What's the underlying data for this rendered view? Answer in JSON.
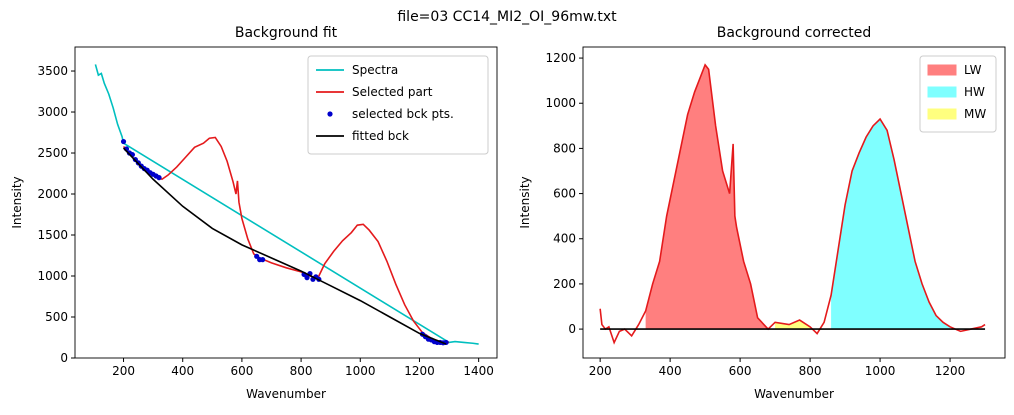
{
  "suptitle": "file=03 CC14_MI2_OI_96mw.txt",
  "chart_data": [
    {
      "type": "line",
      "title": "Background fit",
      "x_label": "Wavenumber",
      "y_label": "Intensity",
      "xlim": [
        36,
        1462
      ],
      "ylim": [
        0,
        3793
      ],
      "xticks": [
        200,
        400,
        600,
        800,
        1000,
        1200,
        1400
      ],
      "yticks": [
        0,
        500,
        1000,
        1500,
        2000,
        2500,
        3000,
        3500
      ],
      "legend": "upper right",
      "series": [
        {
          "name": "Spectra",
          "kind": "line",
          "color": "#00bfbf",
          "x": [
            105,
            115,
            125,
            135,
            150,
            165,
            180,
            195,
            200,
            1300,
            1320,
            1350,
            1380,
            1400
          ],
          "values": [
            3580,
            3450,
            3470,
            3350,
            3220,
            3050,
            2850,
            2700,
            2620,
            190,
            200,
            190,
            180,
            170
          ]
        },
        {
          "name": "Selected part",
          "kind": "line",
          "color": "#e41a1c",
          "x": [
            200,
            230,
            260,
            300,
            330,
            350,
            380,
            410,
            440,
            470,
            490,
            510,
            530,
            550,
            570,
            580,
            585,
            590,
            600,
            620,
            640,
            660,
            700,
            750,
            800,
            830,
            850,
            860,
            880,
            910,
            940,
            970,
            990,
            1010,
            1030,
            1060,
            1090,
            1120,
            1150,
            1180,
            1210,
            1240,
            1270,
            1300
          ],
          "values": [
            2580,
            2450,
            2330,
            2230,
            2180,
            2230,
            2330,
            2450,
            2570,
            2620,
            2680,
            2690,
            2580,
            2400,
            2150,
            2000,
            2160,
            1900,
            1700,
            1450,
            1270,
            1220,
            1160,
            1100,
            1050,
            1000,
            980,
            1000,
            1150,
            1300,
            1430,
            1530,
            1620,
            1630,
            1560,
            1420,
            1180,
            900,
            650,
            450,
            310,
            240,
            200,
            190
          ]
        },
        {
          "name": "selected bck pts.",
          "kind": "scatter",
          "color": "#0000cc",
          "x": [
            200,
            210,
            220,
            230,
            240,
            250,
            260,
            270,
            280,
            290,
            300,
            310,
            320,
            650,
            660,
            670,
            810,
            820,
            830,
            840,
            850,
            860,
            1210,
            1220,
            1230,
            1240,
            1250,
            1260,
            1270,
            1280,
            1290
          ],
          "values": [
            2640,
            2550,
            2500,
            2480,
            2420,
            2380,
            2340,
            2310,
            2290,
            2260,
            2240,
            2220,
            2200,
            1240,
            1200,
            1200,
            1020,
            980,
            1030,
            960,
            990,
            960,
            290,
            260,
            230,
            220,
            200,
            190,
            190,
            185,
            190
          ]
        },
        {
          "name": "fitted bck",
          "kind": "line",
          "color": "#000000",
          "x": [
            200,
            300,
            400,
            500,
            600,
            700,
            800,
            900,
            1000,
            1100,
            1200,
            1290
          ],
          "values": [
            2560,
            2180,
            1850,
            1580,
            1380,
            1220,
            1060,
            880,
            700,
            500,
            300,
            170
          ]
        }
      ]
    },
    {
      "type": "line",
      "title": "Background corrected",
      "x_label": "Wavenumber",
      "y_label": "Intensity",
      "xlim": [
        151,
        1357
      ],
      "ylim": [
        -128,
        1249
      ],
      "xticks": [
        200,
        400,
        600,
        800,
        1000,
        1200
      ],
      "yticks": [
        0,
        200,
        400,
        600,
        800,
        1000,
        1200
      ],
      "legend": "upper right",
      "fills": [
        {
          "name": "LW",
          "color": "#ff7f7f",
          "range": [
            320,
            690
          ]
        },
        {
          "name": "HW",
          "color": "#7fffff",
          "range": [
            860,
            1200
          ]
        },
        {
          "name": "MW",
          "color": "#ffff7f",
          "range": [
            690,
            800
          ]
        }
      ],
      "series": [
        {
          "kind": "line",
          "color": "#e41a1c",
          "x": [
            200,
            205,
            215,
            225,
            240,
            255,
            270,
            290,
            310,
            330,
            350,
            370,
            390,
            410,
            430,
            450,
            470,
            490,
            500,
            510,
            530,
            550,
            570,
            580,
            585,
            590,
            610,
            630,
            650,
            680,
            700,
            740,
            770,
            800,
            820,
            840,
            860,
            880,
            900,
            920,
            940,
            960,
            980,
            1000,
            1020,
            1040,
            1060,
            1080,
            1100,
            1120,
            1140,
            1160,
            1180,
            1200,
            1230,
            1260,
            1290,
            1300
          ],
          "values": [
            90,
            20,
            0,
            10,
            -60,
            -10,
            0,
            -30,
            20,
            80,
            200,
            300,
            500,
            650,
            800,
            950,
            1050,
            1130,
            1170,
            1150,
            900,
            700,
            600,
            820,
            500,
            450,
            300,
            200,
            50,
            0,
            30,
            20,
            40,
            10,
            -20,
            30,
            150,
            350,
            550,
            700,
            780,
            850,
            900,
            930,
            880,
            750,
            600,
            450,
            300,
            200,
            120,
            60,
            30,
            10,
            -10,
            0,
            10,
            20
          ]
        },
        {
          "kind": "line",
          "color": "#000000",
          "x": [
            200,
            1300
          ],
          "values": [
            0,
            0
          ]
        }
      ]
    }
  ]
}
